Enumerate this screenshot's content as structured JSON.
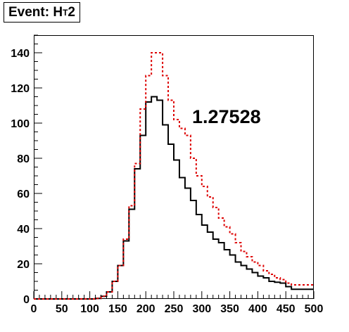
{
  "title": {
    "prefix": "Event: H",
    "subscript": "T",
    "suffix": "2"
  },
  "chart_data": {
    "type": "histogram",
    "title": "Event: HT2",
    "xlabel": "",
    "ylabel": "",
    "xlim": [
      0,
      500
    ],
    "ylim": [
      0,
      150
    ],
    "xticks": [
      0,
      50,
      100,
      150,
      200,
      250,
      300,
      350,
      400,
      450,
      500
    ],
    "yticks": [
      0,
      20,
      40,
      60,
      80,
      100,
      120,
      140
    ],
    "bin_width": 10,
    "bin_edges_start": [
      0,
      10,
      20,
      30,
      40,
      50,
      60,
      70,
      80,
      90,
      100,
      110,
      120,
      130,
      140,
      150,
      160,
      170,
      180,
      190,
      200,
      210,
      220,
      230,
      240,
      250,
      260,
      270,
      280,
      290,
      300,
      310,
      320,
      330,
      340,
      350,
      360,
      370,
      380,
      390,
      400,
      410,
      420,
      430,
      440,
      450,
      460,
      470,
      480,
      490
    ],
    "series": [
      {
        "style": "solid",
        "color": "#000000",
        "values": [
          0,
          0,
          0,
          0,
          0,
          0,
          0,
          0,
          0,
          0,
          0,
          0.3,
          1.5,
          4,
          10,
          19,
          33,
          51,
          74,
          93,
          112,
          115,
          113,
          99,
          88,
          79,
          69,
          63,
          56,
          48,
          42,
          38,
          34,
          32,
          28,
          25,
          21,
          19,
          17,
          15,
          13,
          12,
          10,
          9.5,
          9,
          7,
          5.5,
          5.5,
          5.5,
          5.5
        ]
      },
      {
        "style": "dashed",
        "color": "#dd0000",
        "values": [
          0,
          0,
          0,
          0,
          0,
          0,
          0,
          0,
          0,
          0,
          0,
          0.3,
          1.5,
          4,
          10,
          19,
          34,
          53,
          77,
          108,
          127,
          140,
          140,
          127,
          113,
          102,
          97,
          93,
          80,
          70,
          64,
          58,
          52,
          46,
          41,
          37,
          32,
          27,
          24,
          21,
          19,
          16,
          14,
          12,
          11,
          9,
          8,
          8,
          8,
          8
        ]
      }
    ],
    "annotations": [
      "1.27528"
    ],
    "grid": false
  }
}
